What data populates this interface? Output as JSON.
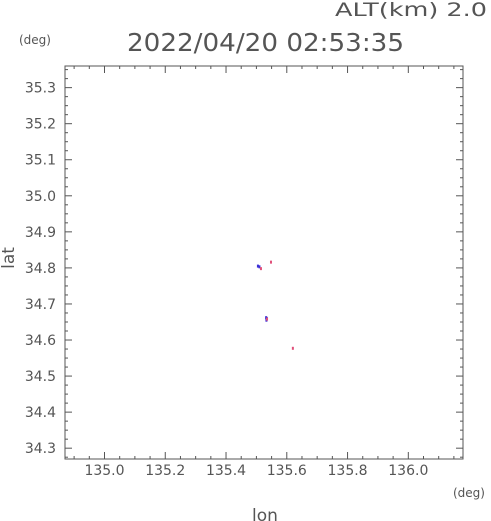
{
  "chart_data": {
    "type": "scatter",
    "title": "2022/04/20 02:53:35",
    "subtitle": "ALT(km) 2.0",
    "xlabel": "lon",
    "ylabel": "lat",
    "x_unit": "(deg)",
    "y_unit": "(deg)",
    "xlim": [
      134.87,
      136.18
    ],
    "ylim": [
      34.27,
      35.36
    ],
    "x_ticks": [
      135.0,
      135.2,
      135.4,
      135.6,
      135.8,
      136.0
    ],
    "x_tick_labels": [
      "135.0",
      "135.2",
      "135.4",
      "135.6",
      "135.8",
      "136.0"
    ],
    "y_ticks": [
      34.3,
      34.4,
      34.5,
      34.6,
      34.7,
      34.8,
      34.9,
      35.0,
      35.1,
      35.2,
      35.3
    ],
    "y_tick_labels": [
      "34.3",
      "34.4",
      "34.5",
      "34.6",
      "34.7",
      "34.8",
      "34.9",
      "35.0",
      "35.1",
      "35.2",
      "35.3"
    ],
    "grid": false,
    "series": [
      {
        "color": "#3b2fd6",
        "points": [
          [
            135.505,
            34.805
          ],
          [
            135.51,
            34.803
          ],
          [
            135.532,
            34.662
          ],
          [
            135.533,
            34.655
          ],
          [
            135.534,
            34.66
          ]
        ]
      },
      {
        "color": "#e0507a",
        "points": [
          [
            135.515,
            34.798
          ],
          [
            135.548,
            34.816
          ],
          [
            135.62,
            34.577
          ],
          [
            135.535,
            34.658
          ]
        ]
      }
    ]
  }
}
